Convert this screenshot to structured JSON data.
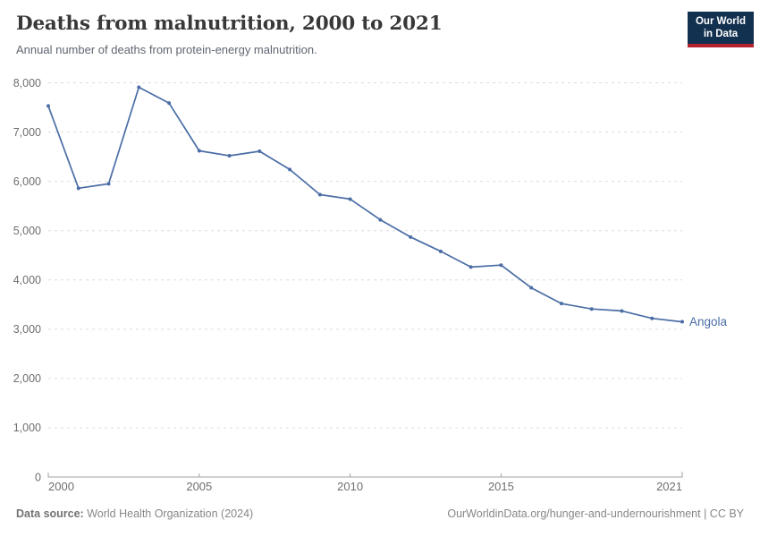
{
  "logo": {
    "line1": "Our World",
    "line2": "in Data",
    "bg_color": "#12304f",
    "bar_color": "#b5232f"
  },
  "chart_data": {
    "type": "line",
    "title": "Deaths from malnutrition, 2000 to 2021",
    "subtitle": "Annual number of deaths from protein-energy malnutrition.",
    "x": [
      2000,
      2001,
      2002,
      2003,
      2004,
      2005,
      2006,
      2007,
      2008,
      2009,
      2010,
      2011,
      2012,
      2013,
      2014,
      2015,
      2016,
      2017,
      2018,
      2019,
      2020,
      2021
    ],
    "series": [
      {
        "name": "Angola",
        "color": "#4a6da5",
        "values": [
          7530,
          5860,
          5950,
          7910,
          7590,
          6620,
          6520,
          6610,
          6240,
          5730,
          5640,
          5220,
          4870,
          4580,
          4260,
          4300,
          3840,
          3520,
          3410,
          3370,
          3220,
          3150
        ]
      }
    ],
    "ylim": [
      0,
      8000
    ],
    "yticks": [
      {
        "value": 0,
        "label": "0"
      },
      {
        "value": 1000,
        "label": "1,000"
      },
      {
        "value": 2000,
        "label": "2,000"
      },
      {
        "value": 3000,
        "label": "3,000"
      },
      {
        "value": 4000,
        "label": "4,000"
      },
      {
        "value": 5000,
        "label": "5,000"
      },
      {
        "value": 6000,
        "label": "6,000"
      },
      {
        "value": 7000,
        "label": "7,000"
      },
      {
        "value": 8000,
        "label": "8,000"
      }
    ],
    "xticks": [
      {
        "value": 2000,
        "label": "2000",
        "anchor": "start"
      },
      {
        "value": 2005,
        "label": "2005",
        "anchor": "middle"
      },
      {
        "value": 2010,
        "label": "2010",
        "anchor": "middle"
      },
      {
        "value": 2015,
        "label": "2015",
        "anchor": "middle"
      },
      {
        "value": 2021,
        "label": "2021",
        "anchor": "end"
      }
    ],
    "grid": "horizontal-dashed",
    "legend": "end-of-line-label",
    "colors": {
      "gridline": "#dcdcdc",
      "axis": "#a1a1a1",
      "tick_text": "#6e6e6e"
    }
  },
  "footer": {
    "source_label": "Data source:",
    "source_value": "World Health Organization (2024)",
    "attribution": "OurWorldinData.org/hunger-and-undernourishment | CC BY"
  }
}
